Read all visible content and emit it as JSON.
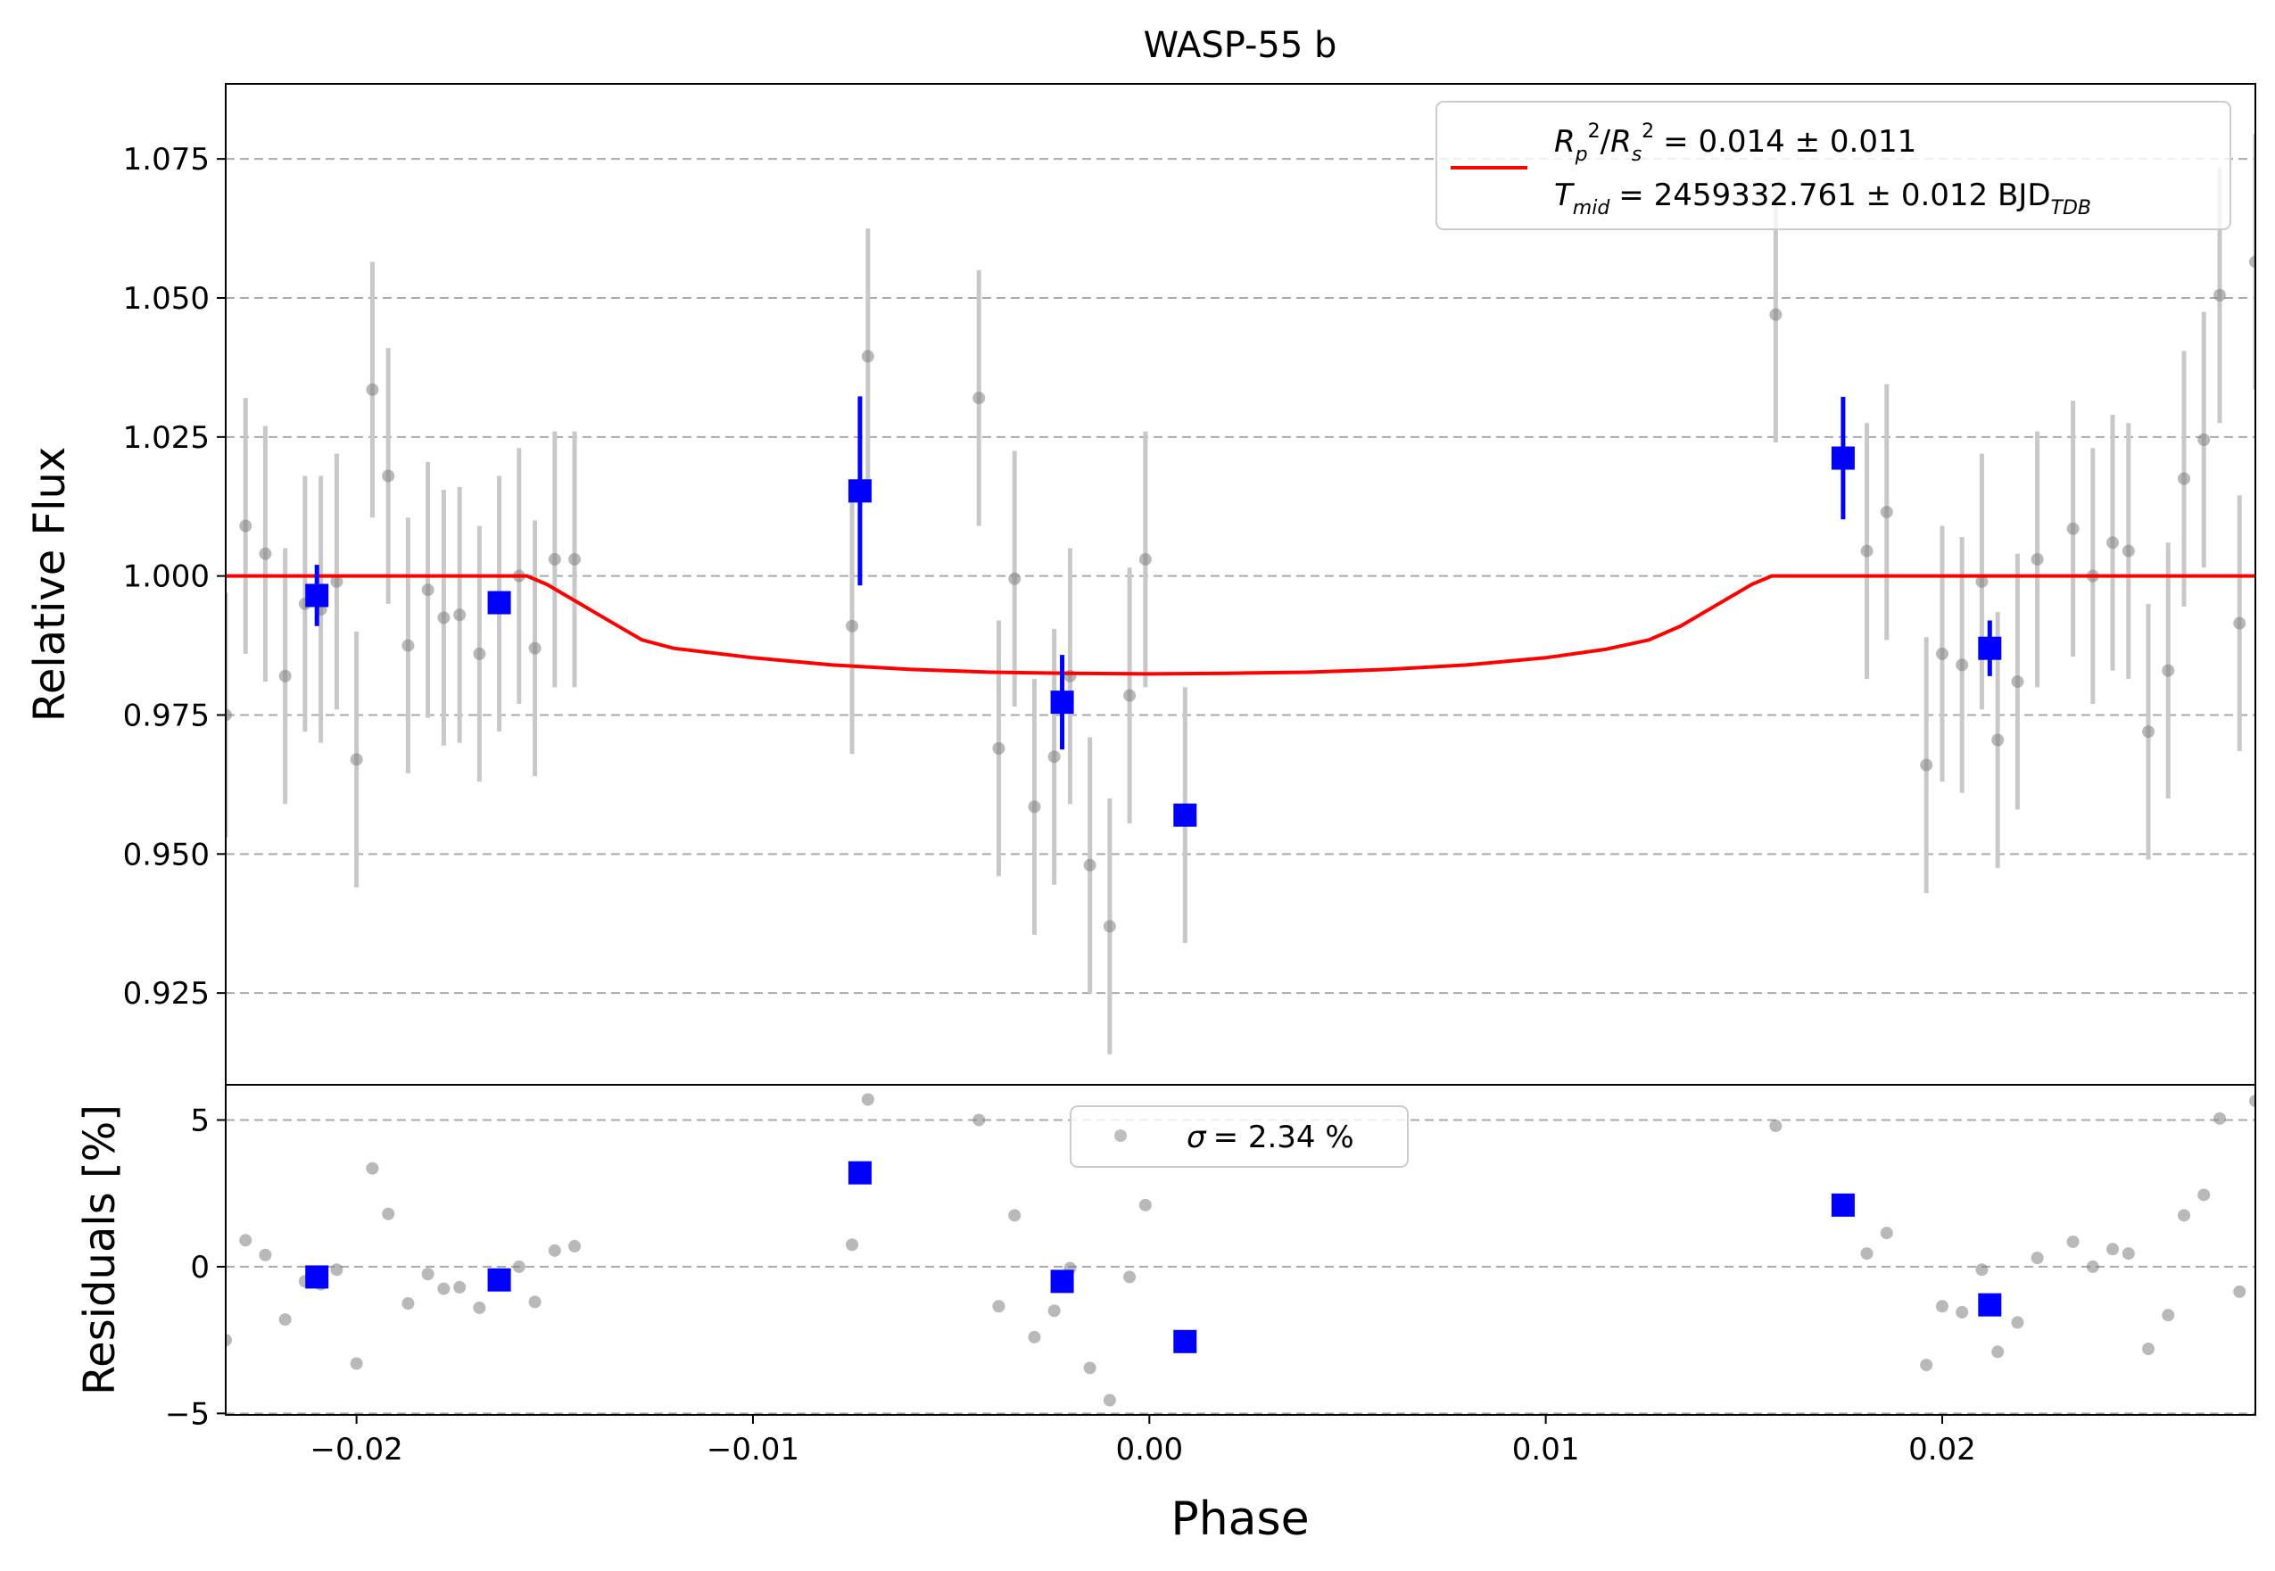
{
  "title": "WASP-55 b",
  "legend": {
    "rp_label": "= 0.014 ± 0.011",
    "tmid_label": "= 2459332.761 ± 0.012 BJD",
    "sigma_label": "= 2.34 %"
  },
  "colors": {
    "model": "#ff0000",
    "binned": "#0000ff",
    "raw": "#808080",
    "raw_err": "#c8c8c8",
    "grid": "#aaaaaa"
  },
  "chart_data": [
    {
      "type": "scatter",
      "title": "WASP-55 b",
      "xlabel": "",
      "ylabel": "Relative Flux",
      "xlim": [
        -0.0233,
        0.0279
      ],
      "ylim": [
        0.9085,
        1.0885
      ],
      "yticks": [
        "0.925",
        "0.950",
        "0.975",
        "1.000",
        "1.025",
        "1.050",
        "1.075"
      ],
      "grid": "horizontal dashed",
      "legend_position": "top-right",
      "raw_points": [
        {
          "x": -0.0233,
          "y": 0.975,
          "err": 0.022
        },
        {
          "x": -0.0228,
          "y": 1.009,
          "err": 0.023
        },
        {
          "x": -0.0223,
          "y": 1.004,
          "err": 0.023
        },
        {
          "x": -0.0218,
          "y": 0.982,
          "err": 0.023
        },
        {
          "x": -0.0213,
          "y": 0.995,
          "err": 0.023
        },
        {
          "x": -0.0209,
          "y": 0.994,
          "err": 0.024
        },
        {
          "x": -0.0205,
          "y": 0.999,
          "err": 0.023
        },
        {
          "x": -0.02,
          "y": 0.967,
          "err": 0.023
        },
        {
          "x": -0.0196,
          "y": 1.0335,
          "err": 0.023
        },
        {
          "x": -0.0192,
          "y": 1.018,
          "err": 0.023
        },
        {
          "x": -0.0187,
          "y": 0.9875,
          "err": 0.023
        },
        {
          "x": -0.0182,
          "y": 0.9975,
          "err": 0.023
        },
        {
          "x": -0.0178,
          "y": 0.9925,
          "err": 0.023
        },
        {
          "x": -0.0174,
          "y": 0.993,
          "err": 0.023
        },
        {
          "x": -0.0169,
          "y": 0.986,
          "err": 0.023
        },
        {
          "x": -0.0164,
          "y": 0.995,
          "err": 0.023
        },
        {
          "x": -0.0159,
          "y": 1.0,
          "err": 0.023
        },
        {
          "x": -0.0155,
          "y": 0.987,
          "err": 0.023
        },
        {
          "x": -0.015,
          "y": 1.003,
          "err": 0.023
        },
        {
          "x": -0.0145,
          "y": 1.003,
          "err": 0.023
        },
        {
          "x": -0.0075,
          "y": 0.991,
          "err": 0.023
        },
        {
          "x": -0.0071,
          "y": 1.0395,
          "err": 0.023
        },
        {
          "x": -0.0043,
          "y": 1.032,
          "err": 0.023
        },
        {
          "x": -0.0038,
          "y": 0.969,
          "err": 0.023
        },
        {
          "x": -0.0034,
          "y": 0.9995,
          "err": 0.023
        },
        {
          "x": -0.0029,
          "y": 0.9585,
          "err": 0.023
        },
        {
          "x": -0.0024,
          "y": 0.9675,
          "err": 0.023
        },
        {
          "x": -0.002,
          "y": 0.982,
          "err": 0.023
        },
        {
          "x": -0.0015,
          "y": 0.948,
          "err": 0.023
        },
        {
          "x": -0.001,
          "y": 0.937,
          "err": 0.023
        },
        {
          "x": -0.0005,
          "y": 0.9785,
          "err": 0.023
        },
        {
          "x": -0.0001,
          "y": 1.003,
          "err": 0.023
        },
        {
          "x": 0.0009,
          "y": 0.957,
          "err": 0.023
        },
        {
          "x": 0.0158,
          "y": 1.047,
          "err": 0.023
        },
        {
          "x": 0.0181,
          "y": 1.0045,
          "err": 0.023
        },
        {
          "x": 0.0186,
          "y": 1.0115,
          "err": 0.023
        },
        {
          "x": 0.0196,
          "y": 0.966,
          "err": 0.023
        },
        {
          "x": 0.02,
          "y": 0.986,
          "err": 0.023
        },
        {
          "x": 0.0205,
          "y": 0.984,
          "err": 0.023
        },
        {
          "x": 0.021,
          "y": 0.999,
          "err": 0.023
        },
        {
          "x": 0.0214,
          "y": 0.9705,
          "err": 0.023
        },
        {
          "x": 0.0219,
          "y": 0.981,
          "err": 0.023
        },
        {
          "x": 0.0224,
          "y": 1.003,
          "err": 0.023
        },
        {
          "x": 0.0233,
          "y": 1.0085,
          "err": 0.023
        },
        {
          "x": 0.0238,
          "y": 1.0,
          "err": 0.023
        },
        {
          "x": 0.0243,
          "y": 1.006,
          "err": 0.023
        },
        {
          "x": 0.0247,
          "y": 1.0045,
          "err": 0.023
        },
        {
          "x": 0.0252,
          "y": 0.972,
          "err": 0.023
        },
        {
          "x": 0.0257,
          "y": 0.983,
          "err": 0.023
        },
        {
          "x": 0.0261,
          "y": 1.0175,
          "err": 0.023
        },
        {
          "x": 0.0266,
          "y": 1.0245,
          "err": 0.023
        },
        {
          "x": 0.027,
          "y": 1.0505,
          "err": 0.023
        },
        {
          "x": 0.0275,
          "y": 0.9915,
          "err": 0.023
        },
        {
          "x": 0.0279,
          "y": 1.0565,
          "err": 0.023
        }
      ],
      "binned_points": [
        {
          "x": -0.021,
          "y": 0.9965,
          "err": 0.0055
        },
        {
          "x": -0.0164,
          "y": 0.9952,
          "err": 0.001
        },
        {
          "x": -0.0073,
          "y": 1.0153,
          "err": 0.017
        },
        {
          "x": -0.0022,
          "y": 0.9773,
          "err": 0.0085
        },
        {
          "x": 0.0009,
          "y": 0.957,
          "err": 0.001
        },
        {
          "x": 0.0175,
          "y": 1.0212,
          "err": 0.011
        },
        {
          "x": 0.0212,
          "y": 0.987,
          "err": 0.005
        }
      ],
      "model": {
        "x": [
          -0.0233,
          -0.0157,
          -0.0152,
          -0.0146,
          -0.014,
          -0.0134,
          -0.0128,
          -0.012,
          -0.01,
          -0.008,
          -0.006,
          -0.004,
          -0.002,
          0.0,
          0.002,
          0.004,
          0.006,
          0.008,
          0.01,
          0.0115,
          0.0126,
          0.0134,
          0.014,
          0.0146,
          0.0152,
          0.0157,
          0.0279
        ],
        "y": [
          1.0,
          1.0,
          0.9985,
          0.996,
          0.9935,
          0.991,
          0.9885,
          0.987,
          0.9853,
          0.984,
          0.9832,
          0.9827,
          0.9825,
          0.9824,
          0.9825,
          0.9827,
          0.9832,
          0.984,
          0.9853,
          0.9868,
          0.9885,
          0.991,
          0.9935,
          0.996,
          0.9985,
          1.0,
          1.0
        ]
      }
    },
    {
      "type": "scatter",
      "xlabel": "Phase",
      "ylabel": "Residuals [%]",
      "xlim": [
        -0.0233,
        0.0279
      ],
      "ylim": [
        -5.05,
        6.2
      ],
      "yticks": [
        "−5",
        "0",
        "5"
      ],
      "xticks": [
        "−0.02",
        "−0.01",
        "0.00",
        "0.01",
        "0.02"
      ],
      "grid": "horizontal dashed",
      "legend_position": "top-center",
      "raw_points": [
        {
          "x": -0.0233,
          "y": -2.5
        },
        {
          "x": -0.0228,
          "y": 0.9
        },
        {
          "x": -0.0223,
          "y": 0.4
        },
        {
          "x": -0.0218,
          "y": -1.8
        },
        {
          "x": -0.0213,
          "y": -0.5
        },
        {
          "x": -0.0209,
          "y": -0.6
        },
        {
          "x": -0.0205,
          "y": -0.1
        },
        {
          "x": -0.02,
          "y": -3.3
        },
        {
          "x": -0.0196,
          "y": 3.35
        },
        {
          "x": -0.0192,
          "y": 1.8
        },
        {
          "x": -0.0187,
          "y": -1.25
        },
        {
          "x": -0.0182,
          "y": -0.25
        },
        {
          "x": -0.0178,
          "y": -0.75
        },
        {
          "x": -0.0174,
          "y": -0.7
        },
        {
          "x": -0.0169,
          "y": -1.4
        },
        {
          "x": -0.0164,
          "y": -0.5
        },
        {
          "x": -0.0159,
          "y": 0.0
        },
        {
          "x": -0.0155,
          "y": -1.2
        },
        {
          "x": -0.015,
          "y": 0.55
        },
        {
          "x": -0.0145,
          "y": 0.7
        },
        {
          "x": -0.0075,
          "y": 0.75
        },
        {
          "x": -0.0071,
          "y": 5.7
        },
        {
          "x": -0.0043,
          "y": 5.0
        },
        {
          "x": -0.0038,
          "y": -1.35
        },
        {
          "x": -0.0034,
          "y": 1.75
        },
        {
          "x": -0.0029,
          "y": -2.4
        },
        {
          "x": -0.0024,
          "y": -1.5
        },
        {
          "x": -0.002,
          "y": -0.05
        },
        {
          "x": -0.0015,
          "y": -3.45
        },
        {
          "x": -0.001,
          "y": -4.55
        },
        {
          "x": -0.0005,
          "y": -0.35
        },
        {
          "x": -0.0001,
          "y": 2.1
        },
        {
          "x": 0.0009,
          "y": -2.55
        },
        {
          "x": 0.0158,
          "y": 4.8
        },
        {
          "x": 0.0181,
          "y": 0.45
        },
        {
          "x": 0.0186,
          "y": 1.15
        },
        {
          "x": 0.0196,
          "y": -3.35
        },
        {
          "x": 0.02,
          "y": -1.35
        },
        {
          "x": 0.0205,
          "y": -1.55
        },
        {
          "x": 0.021,
          "y": -0.1
        },
        {
          "x": 0.0214,
          "y": -2.9
        },
        {
          "x": 0.0219,
          "y": -1.9
        },
        {
          "x": 0.0224,
          "y": 0.3
        },
        {
          "x": 0.0233,
          "y": 0.85
        },
        {
          "x": 0.0238,
          "y": 0.0
        },
        {
          "x": 0.0243,
          "y": 0.6
        },
        {
          "x": 0.0247,
          "y": 0.45
        },
        {
          "x": 0.0252,
          "y": -2.8
        },
        {
          "x": 0.0257,
          "y": -1.65
        },
        {
          "x": 0.0261,
          "y": 1.75
        },
        {
          "x": 0.0266,
          "y": 2.45
        },
        {
          "x": 0.027,
          "y": 5.05
        },
        {
          "x": 0.0275,
          "y": -0.85
        },
        {
          "x": 0.0279,
          "y": 5.65
        }
      ],
      "binned_points": [
        {
          "x": -0.021,
          "y": -0.35
        },
        {
          "x": -0.0164,
          "y": -0.45
        },
        {
          "x": -0.0073,
          "y": 3.2
        },
        {
          "x": -0.0022,
          "y": -0.5
        },
        {
          "x": 0.0009,
          "y": -2.55
        },
        {
          "x": 0.0175,
          "y": 2.1
        },
        {
          "x": 0.0212,
          "y": -1.3
        }
      ]
    }
  ]
}
